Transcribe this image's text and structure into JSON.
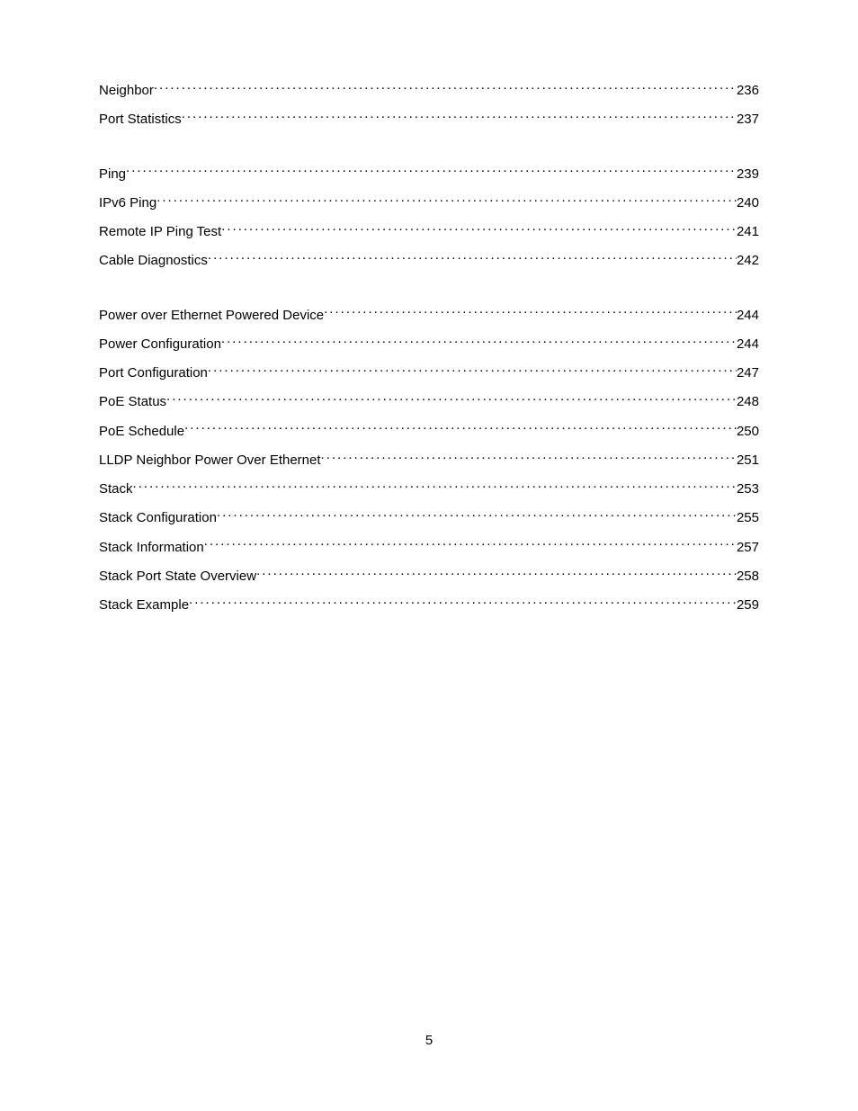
{
  "toc": {
    "groups": [
      {
        "items": [
          {
            "title": "Neighbor ",
            "page": " 236"
          },
          {
            "title": "Port Statistics ",
            "page": " 237"
          }
        ]
      },
      {
        "items": [
          {
            "title": "Ping  ",
            "page": " 239"
          },
          {
            "title": "IPv6 Ping",
            "page": " 240"
          },
          {
            "title": "Remote IP Ping Test",
            "page": " 241"
          },
          {
            "title": "Cable Diagnostics ",
            "page": " 242"
          }
        ]
      },
      {
        "items": [
          {
            "title": "Power over Ethernet Powered Device",
            "page": " 244"
          },
          {
            "title": "Power Configuration ",
            "page": " 244"
          },
          {
            "title": "Port Configuration ",
            "page": " 247"
          },
          {
            "title": "PoE Status ",
            "page": " 248"
          },
          {
            "title": "PoE Schedule ",
            "page": " 250"
          },
          {
            "title": "LLDP Neighbor Power Over Ethernet",
            "page": " 251"
          },
          {
            "title": "Stack ",
            "page": " 253"
          },
          {
            "title": "Stack Configuration",
            "page": " 255"
          },
          {
            "title": "Stack Information ",
            "page": " 257"
          },
          {
            "title": "Stack Port State Overview ",
            "page": " 258"
          },
          {
            "title": "Stack Example ",
            "page": " 259"
          }
        ]
      }
    ]
  },
  "page_number": "5"
}
